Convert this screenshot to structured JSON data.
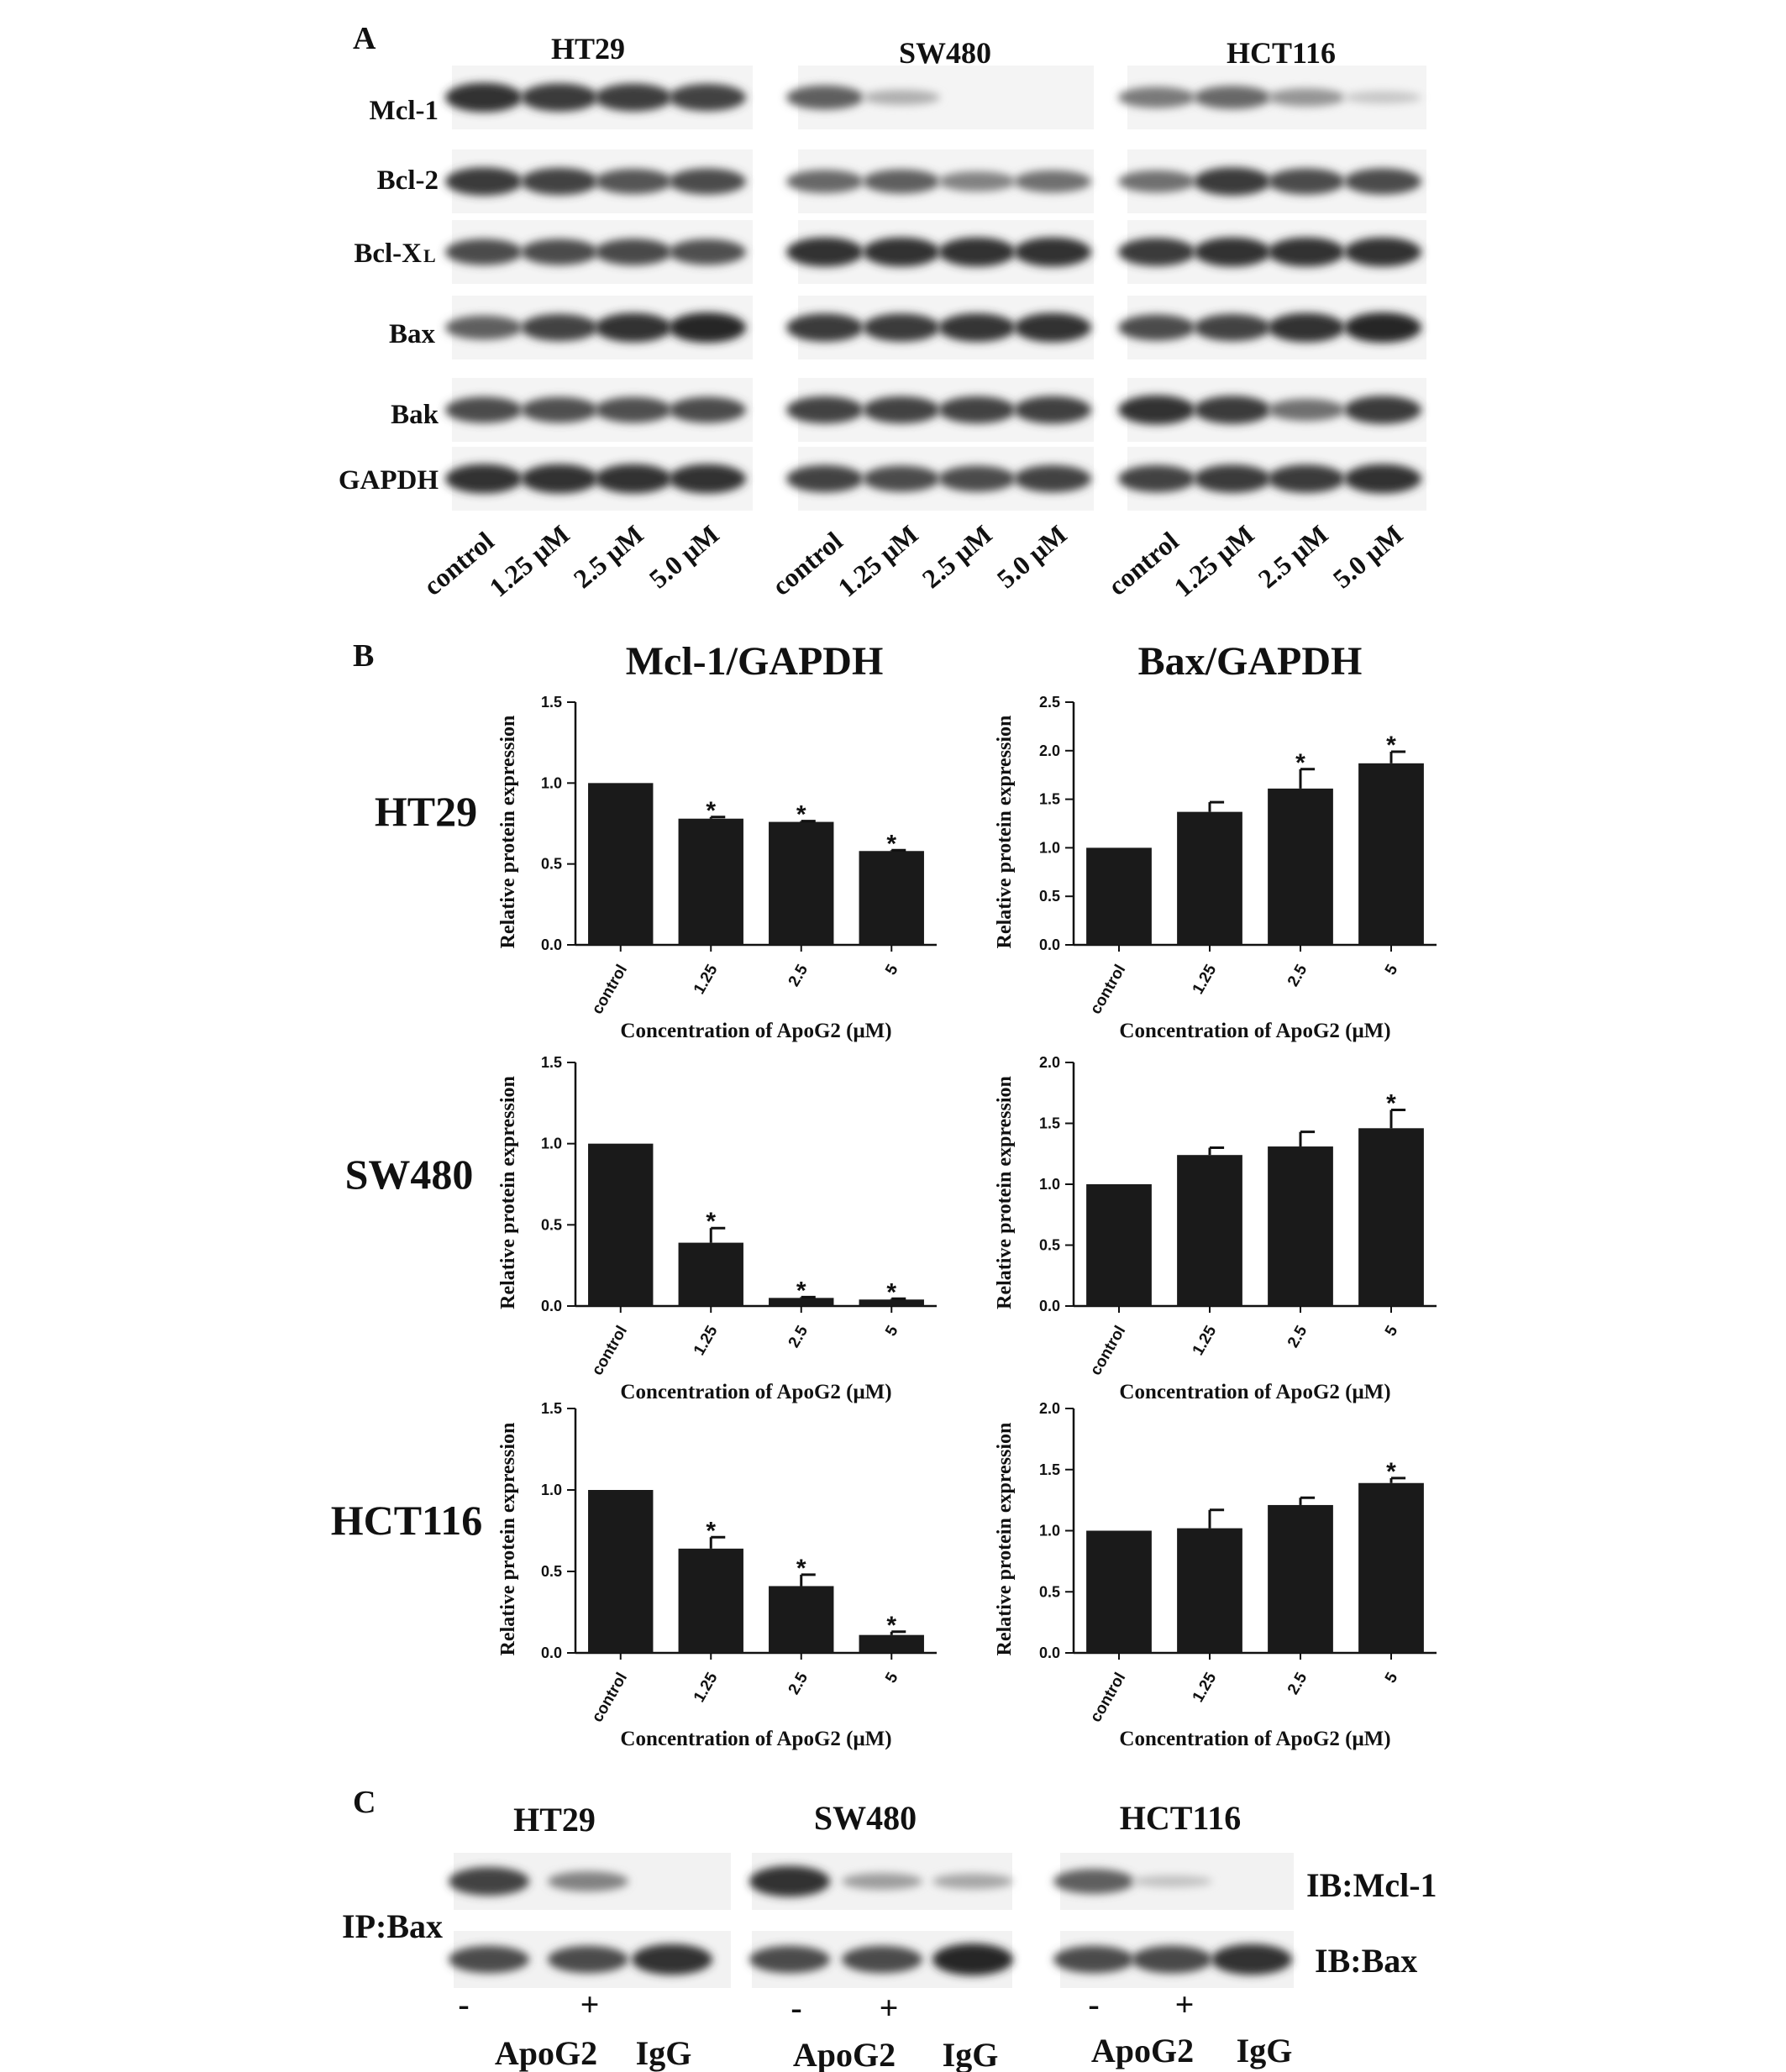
{
  "panel_a": {
    "letter": "A",
    "cell_lines": [
      "HT29",
      "SW480",
      "HCT116"
    ],
    "proteins": [
      "Mcl-1",
      "Bcl-2",
      "Bcl-X",
      "Bax",
      "Bak",
      "GAPDH"
    ],
    "bcl_xl_subscript": "L",
    "lanes": [
      "control",
      "1.25 μM",
      "2.5 μM",
      "5.0 μM"
    ],
    "band_intensity": {
      "HT29": [
        [
          0.95,
          0.9,
          0.88,
          0.85
        ],
        [
          0.9,
          0.85,
          0.75,
          0.8
        ],
        [
          0.8,
          0.8,
          0.82,
          0.78
        ],
        [
          0.7,
          0.85,
          0.95,
          1.0
        ],
        [
          0.8,
          0.78,
          0.78,
          0.8
        ],
        [
          0.95,
          0.95,
          0.95,
          0.95
        ]
      ],
      "SW480": [
        [
          0.7,
          0.25,
          0.03,
          0.02
        ],
        [
          0.65,
          0.7,
          0.5,
          0.6
        ],
        [
          0.95,
          0.95,
          0.95,
          0.95
        ],
        [
          0.9,
          0.9,
          0.92,
          0.95
        ],
        [
          0.85,
          0.85,
          0.85,
          0.87
        ],
        [
          0.85,
          0.8,
          0.8,
          0.85
        ]
      ],
      "HCT116": [
        [
          0.55,
          0.65,
          0.4,
          0.12
        ],
        [
          0.6,
          0.9,
          0.8,
          0.8
        ],
        [
          0.9,
          0.95,
          0.95,
          0.95
        ],
        [
          0.8,
          0.85,
          0.95,
          1.0
        ],
        [
          0.95,
          0.9,
          0.6,
          0.9
        ],
        [
          0.85,
          0.9,
          0.9,
          0.95
        ]
      ]
    }
  },
  "panel_b": {
    "letter": "B",
    "column_titles": [
      "Mcl-1/GAPDH",
      "Bax/GAPDH"
    ],
    "row_labels": [
      "HT29",
      "SW480",
      "HCT116"
    ],
    "y_label": "Relative protein expression",
    "x_label": "Concentration of ApoG2 (μM)",
    "significance_mark": "*"
  },
  "chart_data": [
    {
      "type": "bar",
      "row": "HT29",
      "column": "Mcl-1/GAPDH",
      "categories": [
        "control",
        "1.25",
        "2.5",
        "5"
      ],
      "values": [
        1.0,
        0.78,
        0.76,
        0.58
      ],
      "errors": [
        0,
        0.01,
        0.005,
        0.005
      ],
      "significant": [
        false,
        true,
        true,
        true
      ],
      "ylim": [
        0,
        1.5
      ],
      "yticks": [
        "0.0",
        "0.5",
        "1.0",
        "1.5"
      ],
      "ylabel": "Relative protein expression",
      "xlabel": "Concentration of ApoG2 (μM)"
    },
    {
      "type": "bar",
      "row": "HT29",
      "column": "Bax/GAPDH",
      "categories": [
        "control",
        "1.25",
        "2.5",
        "5"
      ],
      "values": [
        1.0,
        1.37,
        1.61,
        1.87
      ],
      "errors": [
        0,
        0.1,
        0.2,
        0.12
      ],
      "significant": [
        false,
        false,
        true,
        true
      ],
      "ylim": [
        0,
        2.5
      ],
      "yticks": [
        "0.0",
        "0.5",
        "1.0",
        "1.5",
        "2.0",
        "2.5"
      ],
      "ylabel": "Relative protein expression",
      "xlabel": "Concentration of ApoG2 (μM)"
    },
    {
      "type": "bar",
      "row": "SW480",
      "column": "Mcl-1/GAPDH",
      "categories": [
        "control",
        "1.25",
        "2.5",
        "5"
      ],
      "values": [
        1.0,
        0.39,
        0.05,
        0.04
      ],
      "errors": [
        0,
        0.09,
        0.005,
        0.005
      ],
      "significant": [
        false,
        true,
        true,
        true
      ],
      "ylim": [
        0,
        1.5
      ],
      "yticks": [
        "0.0",
        "0.5",
        "1.0",
        "1.5"
      ],
      "ylabel": "Relative protein expression",
      "xlabel": "Concentration of ApoG2 (μM)"
    },
    {
      "type": "bar",
      "row": "SW480",
      "column": "Bax/GAPDH",
      "categories": [
        "control",
        "1.25",
        "2.5",
        "5"
      ],
      "values": [
        1.0,
        1.24,
        1.31,
        1.46
      ],
      "errors": [
        0,
        0.06,
        0.12,
        0.15
      ],
      "significant": [
        false,
        false,
        false,
        true
      ],
      "ylim": [
        0,
        2.0
      ],
      "yticks": [
        "0.0",
        "0.5",
        "1.0",
        "1.5",
        "2.0"
      ],
      "ylabel": "Relative protein expression",
      "xlabel": "Concentration of ApoG2 (μM)"
    },
    {
      "type": "bar",
      "row": "HCT116",
      "column": "Mcl-1/GAPDH",
      "categories": [
        "control",
        "1.25",
        "2.5",
        "5"
      ],
      "values": [
        1.0,
        0.64,
        0.41,
        0.11
      ],
      "errors": [
        0,
        0.07,
        0.07,
        0.02
      ],
      "significant": [
        false,
        true,
        true,
        true
      ],
      "ylim": [
        0,
        1.5
      ],
      "yticks": [
        "0.0",
        "0.5",
        "1.0",
        "1.5"
      ],
      "ylabel": "Relative protein expression",
      "xlabel": "Concentration of ApoG2 (μM)"
    },
    {
      "type": "bar",
      "row": "HCT116",
      "column": "Bax/GAPDH",
      "categories": [
        "control",
        "1.25",
        "2.5",
        "5"
      ],
      "values": [
        1.0,
        1.02,
        1.21,
        1.39
      ],
      "errors": [
        0,
        0.15,
        0.06,
        0.04
      ],
      "significant": [
        false,
        false,
        false,
        true
      ],
      "ylim": [
        0,
        2.0
      ],
      "yticks": [
        "0.0",
        "0.5",
        "1.0",
        "1.5",
        "2.0"
      ],
      "ylabel": "Relative protein expression",
      "xlabel": "Concentration of ApoG2 (μM)"
    }
  ],
  "panel_c": {
    "letter": "C",
    "cell_lines": [
      "HT29",
      "SW480",
      "HCT116"
    ],
    "ip_label": "IP:Bax",
    "ib_labels": [
      "IB:Mcl-1",
      "IB:Bax"
    ],
    "lane_markers": [
      "-",
      "+"
    ],
    "apog2_label": "ApoG2",
    "igg_label": "IgG",
    "band_intensity": {
      "HT29": {
        "mcl1": [
          0.85,
          0.5,
          0.0
        ],
        "bax": [
          0.8,
          0.8,
          0.95
        ]
      },
      "SW480": {
        "mcl1": [
          0.95,
          0.35,
          0.3
        ],
        "bax": [
          0.8,
          0.8,
          1.0
        ]
      },
      "HCT116": {
        "mcl1": [
          0.7,
          0.15,
          0.0
        ],
        "bax": [
          0.8,
          0.82,
          0.95
        ]
      }
    }
  }
}
